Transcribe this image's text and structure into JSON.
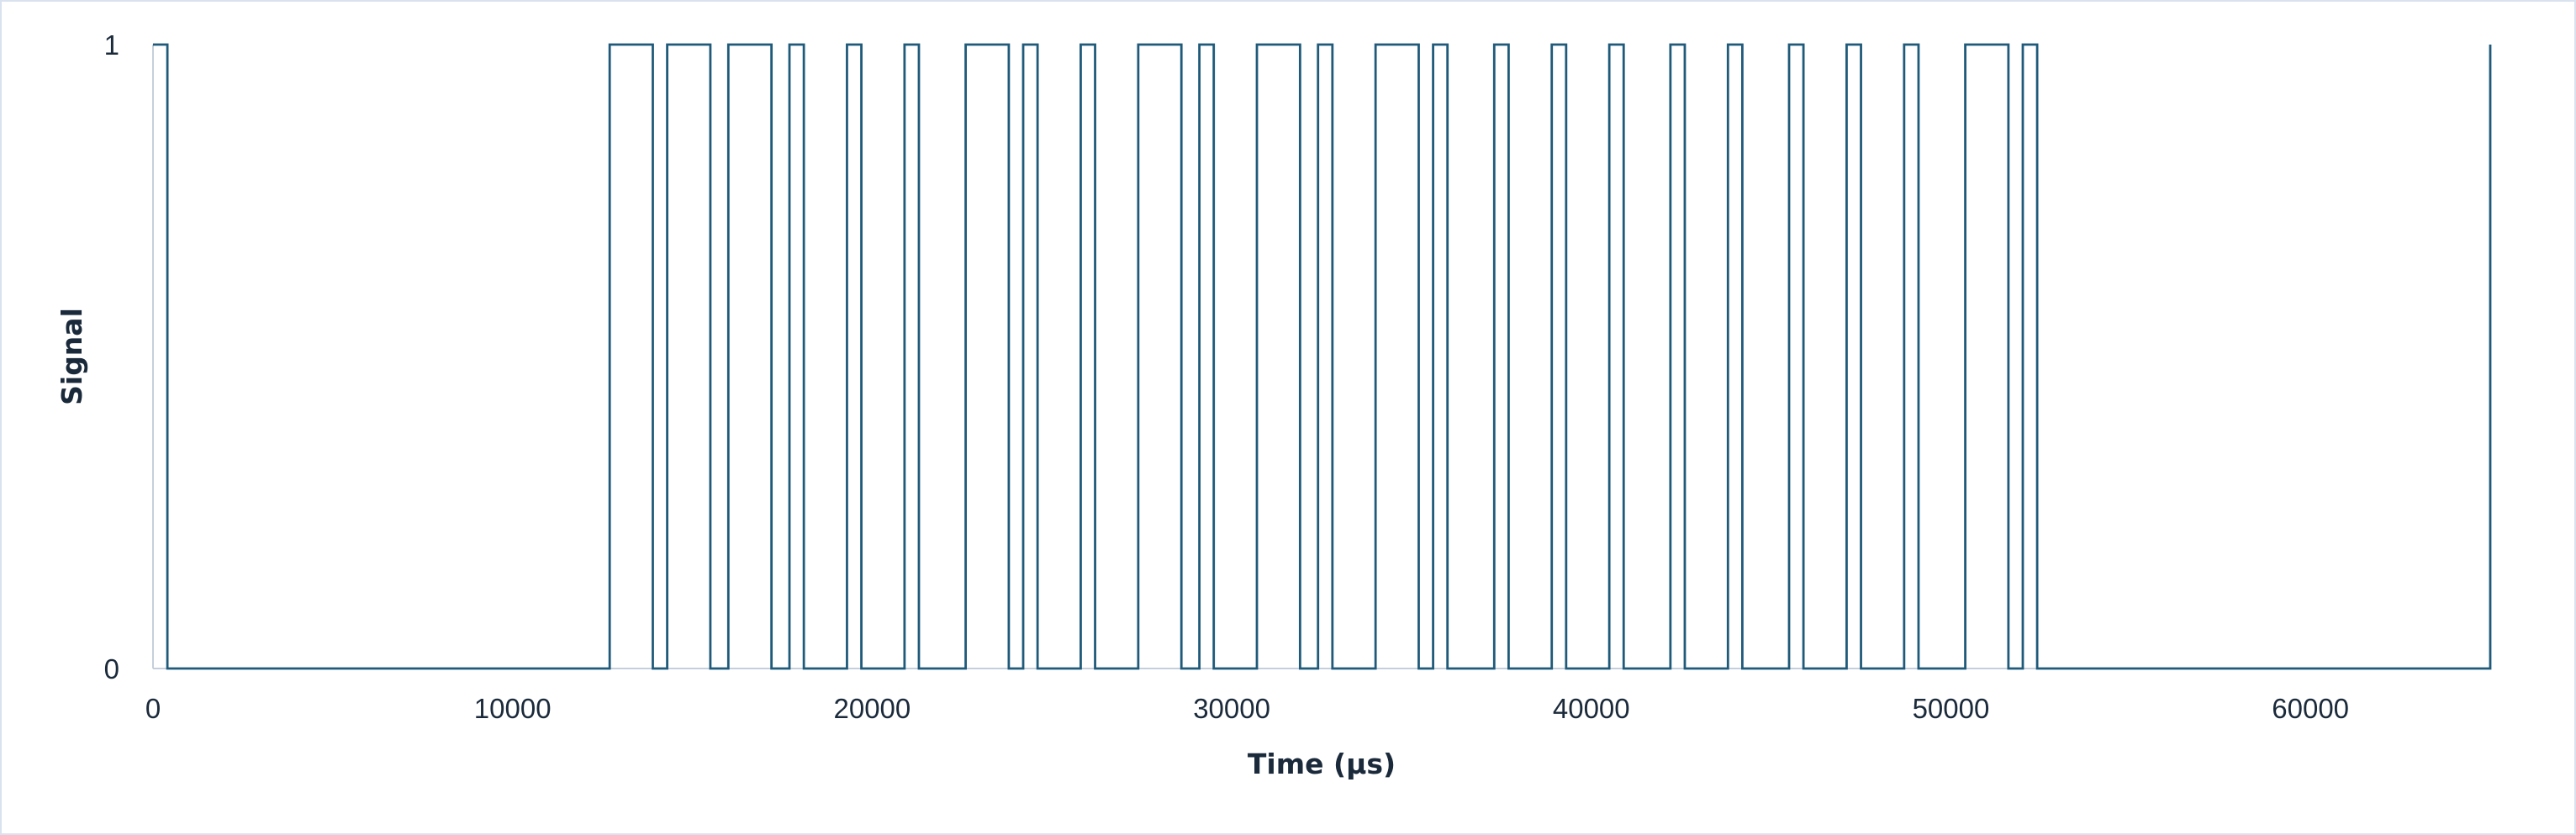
{
  "chart_data": {
    "type": "line",
    "step": true,
    "title": "",
    "xlabel": "Time (μs)",
    "ylabel": "Signal",
    "xlim": [
      0,
      65000
    ],
    "ylim": [
      0,
      1
    ],
    "x_ticks": [
      0,
      10000,
      20000,
      30000,
      40000,
      50000,
      60000
    ],
    "y_ticks": [
      0,
      1
    ],
    "grid": false,
    "legend": "none",
    "line_color": "#1f5a7a",
    "series": [
      {
        "transitions": [
          [
            0,
            1
          ],
          [
            400,
            0
          ],
          [
            12700,
            1
          ],
          [
            13900,
            0
          ],
          [
            14300,
            1
          ],
          [
            15500,
            0
          ],
          [
            16000,
            1
          ],
          [
            17200,
            0
          ],
          [
            17700,
            1
          ],
          [
            18100,
            0
          ],
          [
            19300,
            1
          ],
          [
            19700,
            0
          ],
          [
            20900,
            1
          ],
          [
            21300,
            0
          ],
          [
            22600,
            1
          ],
          [
            23800,
            0
          ],
          [
            24200,
            1
          ],
          [
            24600,
            0
          ],
          [
            25800,
            1
          ],
          [
            26200,
            0
          ],
          [
            27400,
            1
          ],
          [
            28600,
            0
          ],
          [
            29100,
            1
          ],
          [
            29500,
            0
          ],
          [
            30700,
            1
          ],
          [
            31900,
            0
          ],
          [
            32400,
            1
          ],
          [
            32800,
            0
          ],
          [
            34000,
            1
          ],
          [
            35200,
            0
          ],
          [
            35600,
            1
          ],
          [
            36000,
            0
          ],
          [
            37300,
            1
          ],
          [
            37700,
            0
          ],
          [
            38900,
            1
          ],
          [
            39300,
            0
          ],
          [
            40500,
            1
          ],
          [
            40900,
            0
          ],
          [
            42200,
            1
          ],
          [
            42600,
            0
          ],
          [
            43800,
            1
          ],
          [
            44200,
            0
          ],
          [
            45500,
            1
          ],
          [
            45900,
            0
          ],
          [
            47100,
            1
          ],
          [
            47500,
            0
          ],
          [
            48700,
            1
          ],
          [
            49100,
            0
          ],
          [
            50400,
            1
          ],
          [
            51600,
            0
          ],
          [
            52000,
            1
          ],
          [
            52400,
            0
          ],
          [
            65000,
            1
          ]
        ]
      }
    ]
  }
}
